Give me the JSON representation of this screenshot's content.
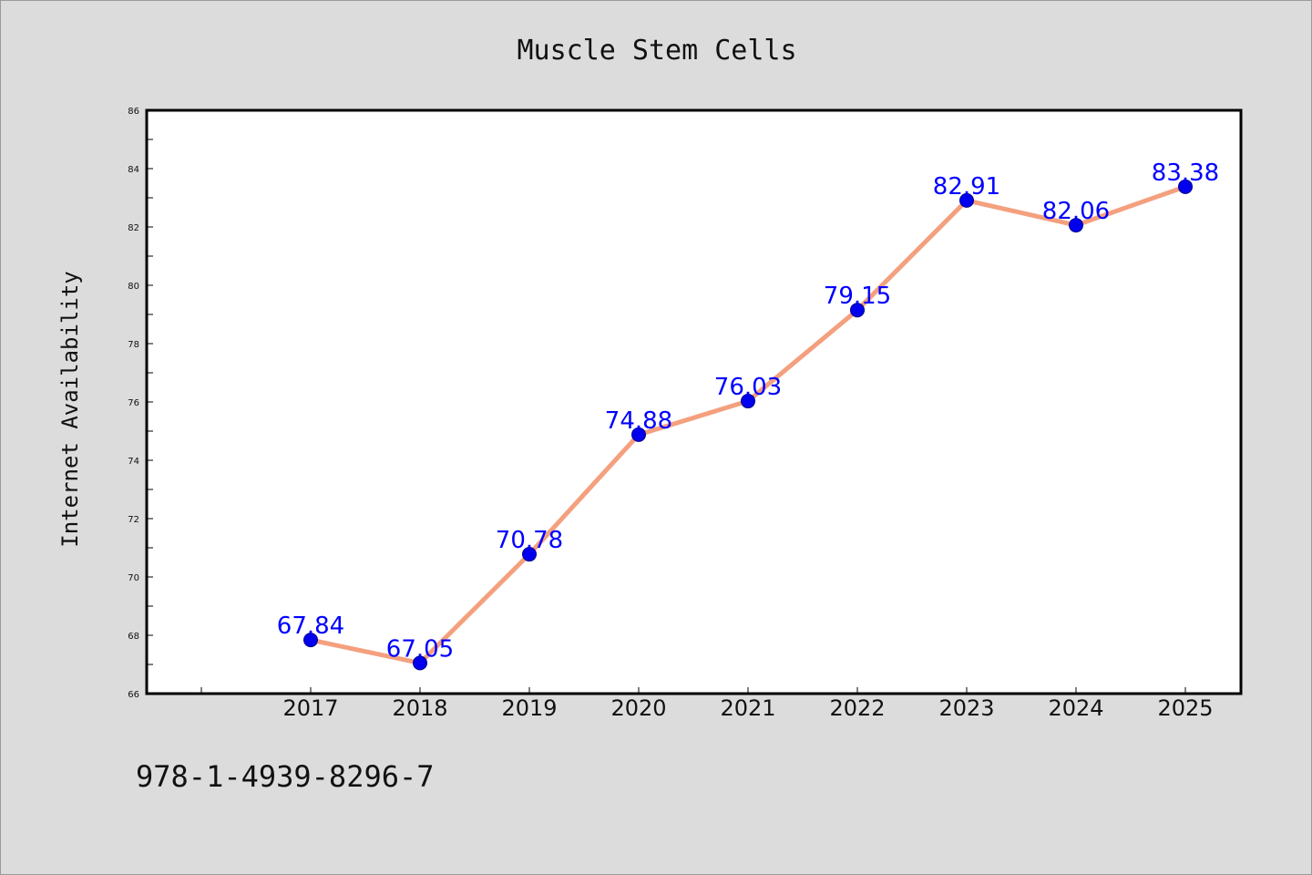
{
  "chart_data": {
    "type": "line",
    "title": "Muscle Stem Cells",
    "xlabel": "",
    "ylabel": "Internet Availability",
    "categories": [
      "2017",
      "2018",
      "2019",
      "2020",
      "2021",
      "2022",
      "2023",
      "2024",
      "2025"
    ],
    "series": [
      {
        "values": [
          67.84,
          67.05,
          70.78,
          74.88,
          76.03,
          79.15,
          82.91,
          82.06,
          83.38
        ],
        "data_labels": [
          "67.84",
          "67.05",
          "70.78",
          "74.88",
          "76.03",
          "79.15",
          "82.91",
          "82.06",
          "83.38"
        ]
      }
    ],
    "ylim": [
      66,
      86
    ],
    "yticks": [
      "66",
      "68",
      "70",
      "72",
      "74",
      "76",
      "78",
      "80",
      "82",
      "84",
      "86"
    ],
    "grid": false,
    "legend": "none",
    "colors": {
      "line": "#f4a07e",
      "marker": "#0000ee",
      "data_label": "#0000ff",
      "plot_background": "#ffffff",
      "page_background": "#dcdcdc"
    }
  },
  "footer": {
    "isbn": "978-1-4939-8296-7"
  }
}
